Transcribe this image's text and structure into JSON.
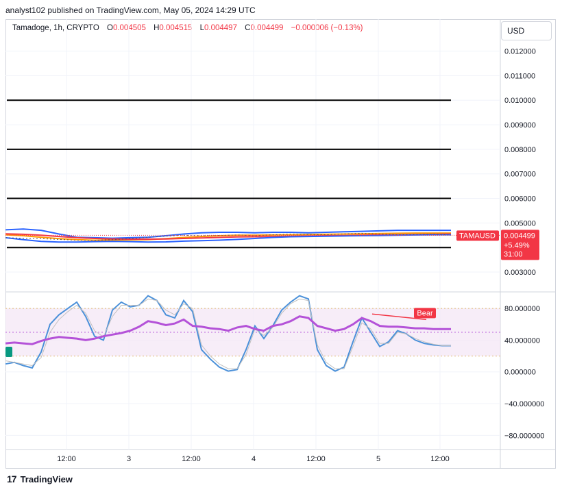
{
  "header": {
    "published": "analyst102 published on TradingView.com, May 05, 2024 14:29 UTC"
  },
  "legend": {
    "symbol": "Tamadoge, 1h, CRYPTO",
    "open_label": "O",
    "open": "0.004505",
    "high_label": "H",
    "high": "0.004515",
    "low_label": "L",
    "low": "0.004497",
    "close_label": "C",
    "close": "0.004499",
    "change": "−0.000006 (−0.13%)"
  },
  "currency_button": "USD",
  "price_badge": {
    "ticker": "TAMAUSD",
    "price": "0.004499",
    "change": "+5.49%",
    "countdown": "31:00"
  },
  "footer": {
    "brand": "TradingView"
  },
  "colors": {
    "bull": "#089981",
    "bear": "#f23645",
    "bb": "#2962ff",
    "ema_fast": "#ff9800",
    "ema_slow": "#f23645",
    "stoch_k": "#4a90d9",
    "stoch_d": "#c0c0c0",
    "rsi": "#b452d8"
  },
  "chart_data": [
    {
      "type": "line",
      "title": "Tamadoge, 1h, CRYPTO",
      "x_ticks": [
        "12:00",
        "3",
        "12:00",
        "4",
        "12:00",
        "5",
        "12:00"
      ],
      "y_ticks": [
        "0.012000",
        "0.011000",
        "0.010000",
        "0.009000",
        "0.008000",
        "0.007000",
        "0.006000",
        "0.005000",
        "0.003000"
      ],
      "ylim": [
        0.00222,
        0.0133
      ],
      "horizontal_levels": [
        0.01,
        0.008,
        0.006,
        0.004
      ],
      "x": [
        0,
        4,
        8,
        12,
        16,
        20,
        24,
        28,
        32,
        36,
        40,
        44,
        48,
        52,
        56,
        60,
        64,
        68,
        72,
        76,
        80,
        84,
        88,
        92,
        96,
        100
      ],
      "series": [
        {
          "name": "BB upper",
          "values": [
            0.00472,
            0.00475,
            0.0047,
            0.00455,
            0.00442,
            0.0044,
            0.00438,
            0.0044,
            0.00442,
            0.00448,
            0.00455,
            0.0046,
            0.00462,
            0.00462,
            0.0046,
            0.00462,
            0.00462,
            0.0046,
            0.00462,
            0.00464,
            0.00466,
            0.00468,
            0.0047,
            0.0047,
            0.0047,
            0.0047
          ]
        },
        {
          "name": "EMA fast",
          "values": [
            0.00452,
            0.00448,
            0.00442,
            0.00436,
            0.00432,
            0.0043,
            0.0043,
            0.00431,
            0.00432,
            0.00436,
            0.00441,
            0.00445,
            0.00448,
            0.0045,
            0.0045,
            0.00451,
            0.00452,
            0.00453,
            0.00454,
            0.00455,
            0.00456,
            0.00457,
            0.00458,
            0.00459,
            0.00459,
            0.00459
          ]
        },
        {
          "name": "EMA slow",
          "values": [
            0.00456,
            0.00454,
            0.0045,
            0.00445,
            0.0044,
            0.00437,
            0.00435,
            0.00434,
            0.00434,
            0.00435,
            0.00437,
            0.00439,
            0.00441,
            0.00443,
            0.00444,
            0.00445,
            0.00446,
            0.00447,
            0.00448,
            0.00449,
            0.0045,
            0.00451,
            0.00452,
            0.00453,
            0.00454,
            0.00455
          ]
        },
        {
          "name": "BB lower",
          "values": [
            0.0044,
            0.00432,
            0.00425,
            0.00422,
            0.00422,
            0.00424,
            0.00425,
            0.00424,
            0.00422,
            0.00423,
            0.00426,
            0.00428,
            0.0043,
            0.00433,
            0.00437,
            0.00441,
            0.00444,
            0.00445,
            0.00446,
            0.00447,
            0.00448,
            0.00449,
            0.0045,
            0.00451,
            0.00452,
            0.00452
          ]
        },
        {
          "name": "price",
          "values": [
            0.0044,
            0.00438,
            0.00436,
            0.00433,
            0.0043,
            0.0043,
            0.00432,
            0.00436,
            0.00442,
            0.00446,
            0.0045,
            0.00448,
            0.00449,
            0.00451,
            0.00448,
            0.00452,
            0.00455,
            0.00453,
            0.00452,
            0.00456,
            0.00458,
            0.00455,
            0.00452,
            0.00453,
            0.00455,
            0.0045
          ]
        }
      ],
      "last_price": 0.004499
    },
    {
      "type": "line",
      "title": "",
      "y_ticks": [
        "80.000000",
        "40.000000",
        "0.000000",
        "−40.000000",
        "−80.000000"
      ],
      "ylim": [
        -97,
        100
      ],
      "band": [
        20,
        80
      ],
      "levels": [
        80,
        50,
        20
      ],
      "x": [
        0,
        2,
        4,
        6,
        8,
        10,
        12,
        14,
        16,
        18,
        20,
        22,
        24,
        26,
        28,
        30,
        32,
        34,
        36,
        38,
        40,
        42,
        44,
        46,
        48,
        50,
        52,
        54,
        56,
        58,
        60,
        62,
        64,
        66,
        68,
        70,
        72,
        74,
        76,
        78,
        80,
        82,
        84,
        86,
        88,
        90,
        92,
        94,
        96,
        98,
        100
      ],
      "series": [
        {
          "name": "Stoch %K",
          "values": [
            10,
            12,
            8,
            5,
            25,
            60,
            72,
            80,
            88,
            70,
            45,
            40,
            78,
            88,
            82,
            84,
            96,
            90,
            72,
            68,
            90,
            76,
            28,
            16,
            6,
            1,
            3,
            28,
            58,
            42,
            58,
            78,
            88,
            96,
            92,
            28,
            8,
            1,
            6,
            38,
            68,
            50,
            32,
            38,
            52,
            48,
            40,
            36,
            34,
            33,
            33
          ]
        },
        {
          "name": "Stoch %D",
          "values": [
            14,
            12,
            10,
            8,
            18,
            50,
            66,
            76,
            84,
            74,
            52,
            44,
            70,
            84,
            84,
            84,
            92,
            90,
            78,
            72,
            86,
            80,
            34,
            20,
            10,
            4,
            4,
            22,
            54,
            46,
            56,
            74,
            86,
            92,
            90,
            34,
            12,
            4,
            4,
            32,
            62,
            54,
            36,
            36,
            50,
            48,
            42,
            38,
            35,
            33,
            33
          ]
        },
        {
          "name": "RSI",
          "values": [
            36,
            37,
            36,
            35,
            39,
            42,
            44,
            43,
            42,
            40,
            42,
            45,
            47,
            49,
            52,
            57,
            64,
            62,
            59,
            61,
            66,
            58,
            57,
            55,
            54,
            52,
            56,
            58,
            54,
            52,
            58,
            60,
            64,
            70,
            68,
            58,
            55,
            52,
            54,
            60,
            68,
            64,
            58,
            57,
            57,
            56,
            55,
            55,
            54,
            54,
            54
          ]
        }
      ],
      "annotation": {
        "label": "Bear",
        "from_value": 73,
        "to_value": 66
      }
    }
  ]
}
